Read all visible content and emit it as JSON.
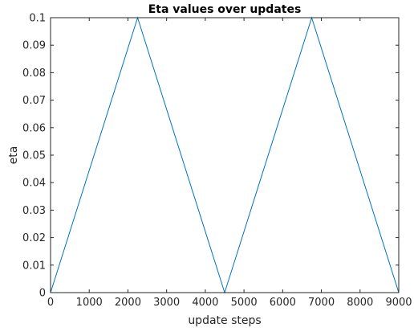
{
  "chart_data": {
    "type": "line",
    "title": "Eta values over updates",
    "xlabel": "update steps",
    "ylabel": "eta",
    "xlim": [
      0,
      9000
    ],
    "ylim": [
      0,
      0.1
    ],
    "x_ticks": [
      0,
      1000,
      2000,
      3000,
      4000,
      5000,
      6000,
      7000,
      8000,
      9000
    ],
    "x_tick_labels": [
      "0",
      "1000",
      "2000",
      "3000",
      "4000",
      "5000",
      "6000",
      "7000",
      "8000",
      "9000"
    ],
    "y_ticks": [
      0,
      0.01,
      0.02,
      0.03,
      0.04,
      0.05,
      0.06,
      0.07,
      0.08,
      0.09,
      0.1
    ],
    "y_tick_labels": [
      "0",
      "0.01",
      "0.02",
      "0.03",
      "0.04",
      "0.05",
      "0.06",
      "0.07",
      "0.08",
      "0.09",
      "0.1"
    ],
    "grid": false,
    "series": [
      {
        "x": [
          0,
          2250,
          4500,
          6750,
          9000
        ],
        "y": [
          0,
          0.1,
          0,
          0.1,
          0
        ]
      }
    ],
    "colors": {
      "line": "#0072bd",
      "axis": "#262626",
      "background": "#ffffff"
    }
  }
}
